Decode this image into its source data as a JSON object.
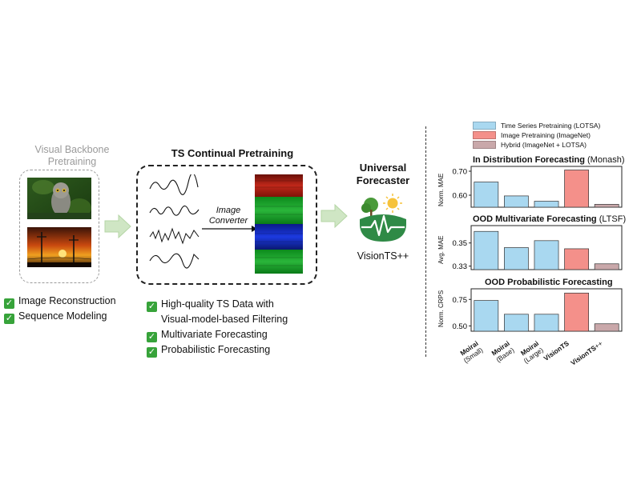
{
  "backbone": {
    "title_line1": "Visual Backbone",
    "title_line2": "Pretraining"
  },
  "left_checks": [
    "Image Reconstruction",
    "Sequence Modeling"
  ],
  "continual": {
    "title": "TS Continual Pretraining",
    "converter_line1": "Image",
    "converter_line2": "Converter"
  },
  "middle_checks": [
    "High-quality TS Data with",
    "Visual-model-based Filtering",
    "Multivariate Forecasting",
    "Probabilistic Forecasting"
  ],
  "forecaster": {
    "title_line1": "Universal",
    "title_line2": "Forecaster",
    "name": "VisionTS++"
  },
  "colors": {
    "ts": "#a9d8f0",
    "image": "#f4908a",
    "hybrid": "#c9a8aa",
    "arrow": "#cfe6c4",
    "check": "#37a33a"
  },
  "legend": [
    {
      "label": "Time Series Pretraining (LOTSA)",
      "color": "#a9d8f0"
    },
    {
      "label": "Image Pretraining (ImageNet)",
      "color": "#f4908a"
    },
    {
      "label": "Hybrid (ImageNet + LOTSA)",
      "color": "#c9a8aa"
    }
  ],
  "chart_data": [
    {
      "type": "bar",
      "title": "In Distribution Forecasting",
      "subtitle": "(Monash)",
      "ylabel": "Norm. MAE",
      "ylim": [
        0.55,
        0.72
      ],
      "yticks": [
        "0.70",
        "0.60"
      ],
      "ytick_values": [
        0.7,
        0.6
      ],
      "categories": [
        "Moirai (Small)",
        "Moirai (Base)",
        "Moirai (Large)",
        "VisionTS",
        "VisionTS++"
      ],
      "values": [
        0.655,
        0.597,
        0.575,
        0.705,
        0.562
      ],
      "bar_colors": [
        "#a9d8f0",
        "#a9d8f0",
        "#a9d8f0",
        "#f4908a",
        "#c9a8aa"
      ]
    },
    {
      "type": "bar",
      "title": "OOD Multivariate Forecasting",
      "subtitle": "(LTSF)",
      "ylabel": "Avg. MAE",
      "ylim": [
        0.327,
        0.365
      ],
      "yticks": [
        "0.35",
        "0.33"
      ],
      "ytick_values": [
        0.35,
        0.33
      ],
      "categories": [
        "Moirai (Small)",
        "Moirai (Base)",
        "Moirai (Large)",
        "VisionTS",
        "VisionTS++"
      ],
      "values": [
        0.36,
        0.346,
        0.352,
        0.345,
        0.332
      ],
      "bar_colors": [
        "#a9d8f0",
        "#a9d8f0",
        "#a9d8f0",
        "#f4908a",
        "#c9a8aa"
      ]
    },
    {
      "type": "bar",
      "title": "OOD Probabilistic Forecasting",
      "subtitle": "",
      "ylabel": "Norm. CRPS",
      "ylim": [
        0.45,
        0.85
      ],
      "yticks": [
        "0.75",
        "0.50"
      ],
      "ytick_values": [
        0.75,
        0.5
      ],
      "categories": [
        "Moirai (Small)",
        "Moirai (Base)",
        "Moirai (Large)",
        "VisionTS",
        "VisionTS++"
      ],
      "values": [
        0.74,
        0.61,
        0.61,
        0.81,
        0.52
      ],
      "bar_colors": [
        "#a9d8f0",
        "#a9d8f0",
        "#a9d8f0",
        "#f4908a",
        "#c9a8aa"
      ]
    }
  ],
  "xlabels": [
    {
      "bold": "Moirai",
      "sub": "(Small)"
    },
    {
      "bold": "Moirai",
      "sub": "(Base)"
    },
    {
      "bold": "Moirai",
      "sub": "(Large)"
    },
    {
      "bold": "VisionTS",
      "sub": ""
    },
    {
      "bold": "VisionTS",
      "sub": "++"
    }
  ]
}
